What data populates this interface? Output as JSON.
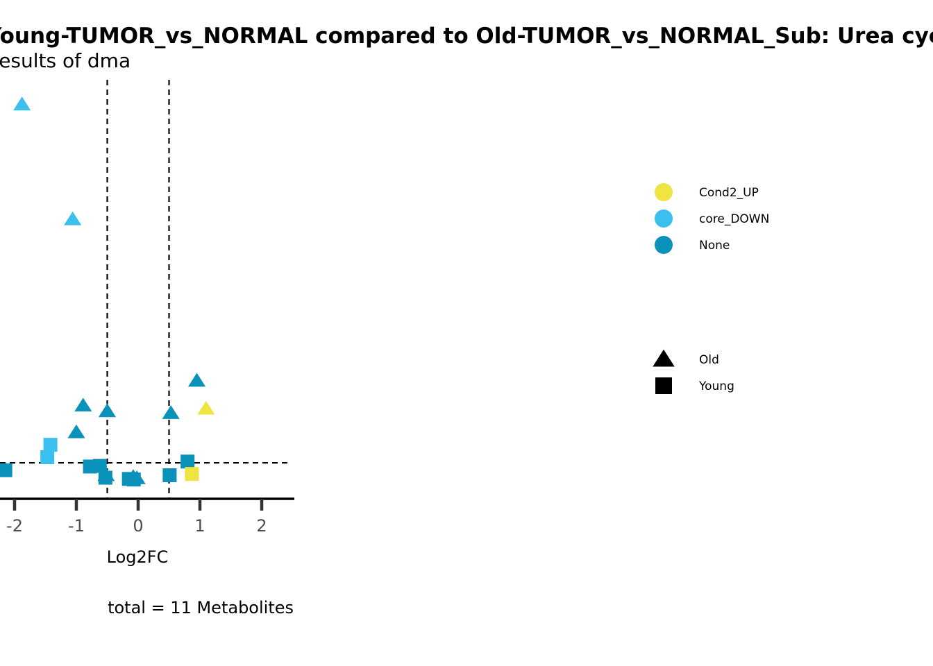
{
  "chart_data": {
    "type": "scatter",
    "title": "Young-TUMOR_vs_NORMAL compared to Old-TUMOR_vs_NORMAL_Sub: Urea cycle",
    "subtitle": "Results of dma",
    "xlabel": "Log2FC",
    "caption": "total = 11 Metabolites",
    "x_ticks": [
      "-2",
      "-1",
      "0",
      "1",
      "2"
    ],
    "xlim": [
      -2.22,
      2.5
    ],
    "ylim": [
      0,
      6.7
    ],
    "x_thresholds": [
      -0.5,
      0.5
    ],
    "y_threshold": 0.58,
    "grid": false,
    "legend_position": "right",
    "colors": {
      "Cond2_UP": "#F0E442",
      "core_DOWN": "#3BBFEE",
      "None": "#0A92BA"
    },
    "color_legend": [
      "Cond2_UP",
      "core_DOWN",
      "None"
    ],
    "shape_legend": [
      {
        "name": "Old",
        "shape": "triangle"
      },
      {
        "name": "Young",
        "shape": "square"
      }
    ],
    "points": [
      {
        "x": -1.88,
        "y": 6.35,
        "color": "core_DOWN",
        "shape": "triangle"
      },
      {
        "x": -1.06,
        "y": 4.5,
        "color": "core_DOWN",
        "shape": "triangle"
      },
      {
        "x": -0.89,
        "y": 1.5,
        "color": "None",
        "shape": "triangle"
      },
      {
        "x": -0.5,
        "y": 1.41,
        "color": "None",
        "shape": "triangle"
      },
      {
        "x": -1.0,
        "y": 1.07,
        "color": "None",
        "shape": "triangle"
      },
      {
        "x": 0.53,
        "y": 1.38,
        "color": "None",
        "shape": "triangle"
      },
      {
        "x": 0.95,
        "y": 1.9,
        "color": "None",
        "shape": "triangle"
      },
      {
        "x": 1.1,
        "y": 1.45,
        "color": "Cond2_UP",
        "shape": "triangle"
      },
      {
        "x": -0.52,
        "y": 0.38,
        "color": "None",
        "shape": "triangle"
      },
      {
        "x": -0.08,
        "y": 0.35,
        "color": "None",
        "shape": "triangle"
      },
      {
        "x": -0.02,
        "y": 0.33,
        "color": "None",
        "shape": "triangle"
      },
      {
        "x": -1.42,
        "y": 0.87,
        "color": "core_DOWN",
        "shape": "square"
      },
      {
        "x": -1.47,
        "y": 0.67,
        "color": "core_DOWN",
        "shape": "square"
      },
      {
        "x": -2.15,
        "y": 0.46,
        "color": "None",
        "shape": "square"
      },
      {
        "x": -0.78,
        "y": 0.52,
        "color": "None",
        "shape": "square"
      },
      {
        "x": -0.62,
        "y": 0.53,
        "color": "None",
        "shape": "square"
      },
      {
        "x": -0.53,
        "y": 0.34,
        "color": "None",
        "shape": "square"
      },
      {
        "x": -0.15,
        "y": 0.32,
        "color": "None",
        "shape": "square"
      },
      {
        "x": -0.07,
        "y": 0.31,
        "color": "None",
        "shape": "square"
      },
      {
        "x": 0.51,
        "y": 0.38,
        "color": "None",
        "shape": "square"
      },
      {
        "x": 0.8,
        "y": 0.6,
        "color": "None",
        "shape": "square"
      },
      {
        "x": 0.87,
        "y": 0.4,
        "color": "Cond2_UP",
        "shape": "square"
      }
    ]
  }
}
